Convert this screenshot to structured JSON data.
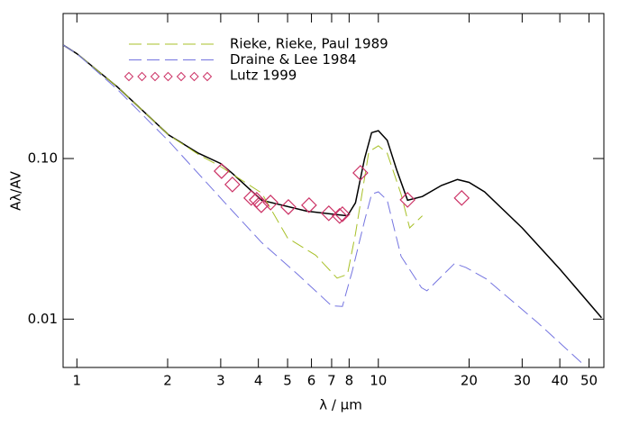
{
  "chart_data": {
    "type": "line",
    "xlabel": "λ / μm",
    "ylabel": "Aλ/AV",
    "xscale": "log",
    "yscale": "log",
    "xlim": [
      0.9,
      56
    ],
    "ylim": [
      0.005,
      0.8
    ],
    "xticks": [
      1,
      2,
      3,
      4,
      5,
      6,
      7,
      8,
      10,
      20,
      30,
      40,
      50
    ],
    "yticks": [
      {
        "value": 0.1,
        "label": "0.10"
      },
      0.01
    ],
    "series": [
      {
        "color": "#000000",
        "linestyle": "solid",
        "x": [
          0.9,
          1,
          1.36,
          2.02,
          2.53,
          3.0,
          3.3,
          4.1,
          5.8,
          7.9,
          8.4,
          9.0,
          9.5,
          10,
          10.7,
          11.5,
          12.5,
          14,
          16.2,
          18.3,
          20,
          22.5,
          30,
          40,
          55
        ],
        "values": [
          0.51,
          0.45,
          0.28,
          0.14,
          0.108,
          0.093,
          0.08,
          0.055,
          0.047,
          0.044,
          0.053,
          0.1,
          0.145,
          0.149,
          0.13,
          0.085,
          0.055,
          0.058,
          0.068,
          0.074,
          0.071,
          0.062,
          0.037,
          0.0205,
          0.0102
        ]
      },
      {
        "name": "Rieke, Rieke, Paul 1989",
        "color": "#a8c028",
        "linestyle": "dashed",
        "x": [
          0.9,
          1,
          1.36,
          2.02,
          2.53,
          3.0,
          4.1,
          5.0,
          6.2,
          7.3,
          7.9,
          8.4,
          9.3,
          10,
          10.7,
          11.9,
          12.7,
          14
        ],
        "values": [
          0.51,
          0.45,
          0.28,
          0.14,
          0.106,
          0.089,
          0.061,
          0.032,
          0.025,
          0.018,
          0.019,
          0.034,
          0.11,
          0.12,
          0.108,
          0.06,
          0.037,
          0.044
        ]
      },
      {
        "name": "Draine & Lee 1984",
        "color": "#7474e0",
        "linestyle": "dashed",
        "x": [
          0.9,
          1,
          1.36,
          2.02,
          3.1,
          4.1,
          5.4,
          7.0,
          7.6,
          8.2,
          9.0,
          9.5,
          10,
          10.7,
          11.9,
          13.9,
          14.5,
          17.9,
          19.5,
          22.8,
          34,
          48
        ],
        "values": [
          0.51,
          0.45,
          0.27,
          0.128,
          0.053,
          0.03,
          0.019,
          0.0121,
          0.012,
          0.02,
          0.041,
          0.06,
          0.062,
          0.055,
          0.0246,
          0.0157,
          0.015,
          0.0222,
          0.021,
          0.0178,
          0.0094,
          0.0052
        ]
      },
      {
        "name": "Lutz 1999",
        "color": "#cc3366",
        "marker": "diamond",
        "x": [
          3.02,
          3.28,
          3.79,
          3.95,
          4.09,
          4.39,
          5.03,
          5.89,
          6.85,
          7.44,
          7.6,
          8.72,
          12.5,
          18.9
        ],
        "values": [
          0.0835,
          0.0689,
          0.0568,
          0.0553,
          0.0512,
          0.0532,
          0.0499,
          0.0512,
          0.0456,
          0.0439,
          0.045,
          0.0814,
          0.0553,
          0.0568
        ]
      }
    ]
  }
}
